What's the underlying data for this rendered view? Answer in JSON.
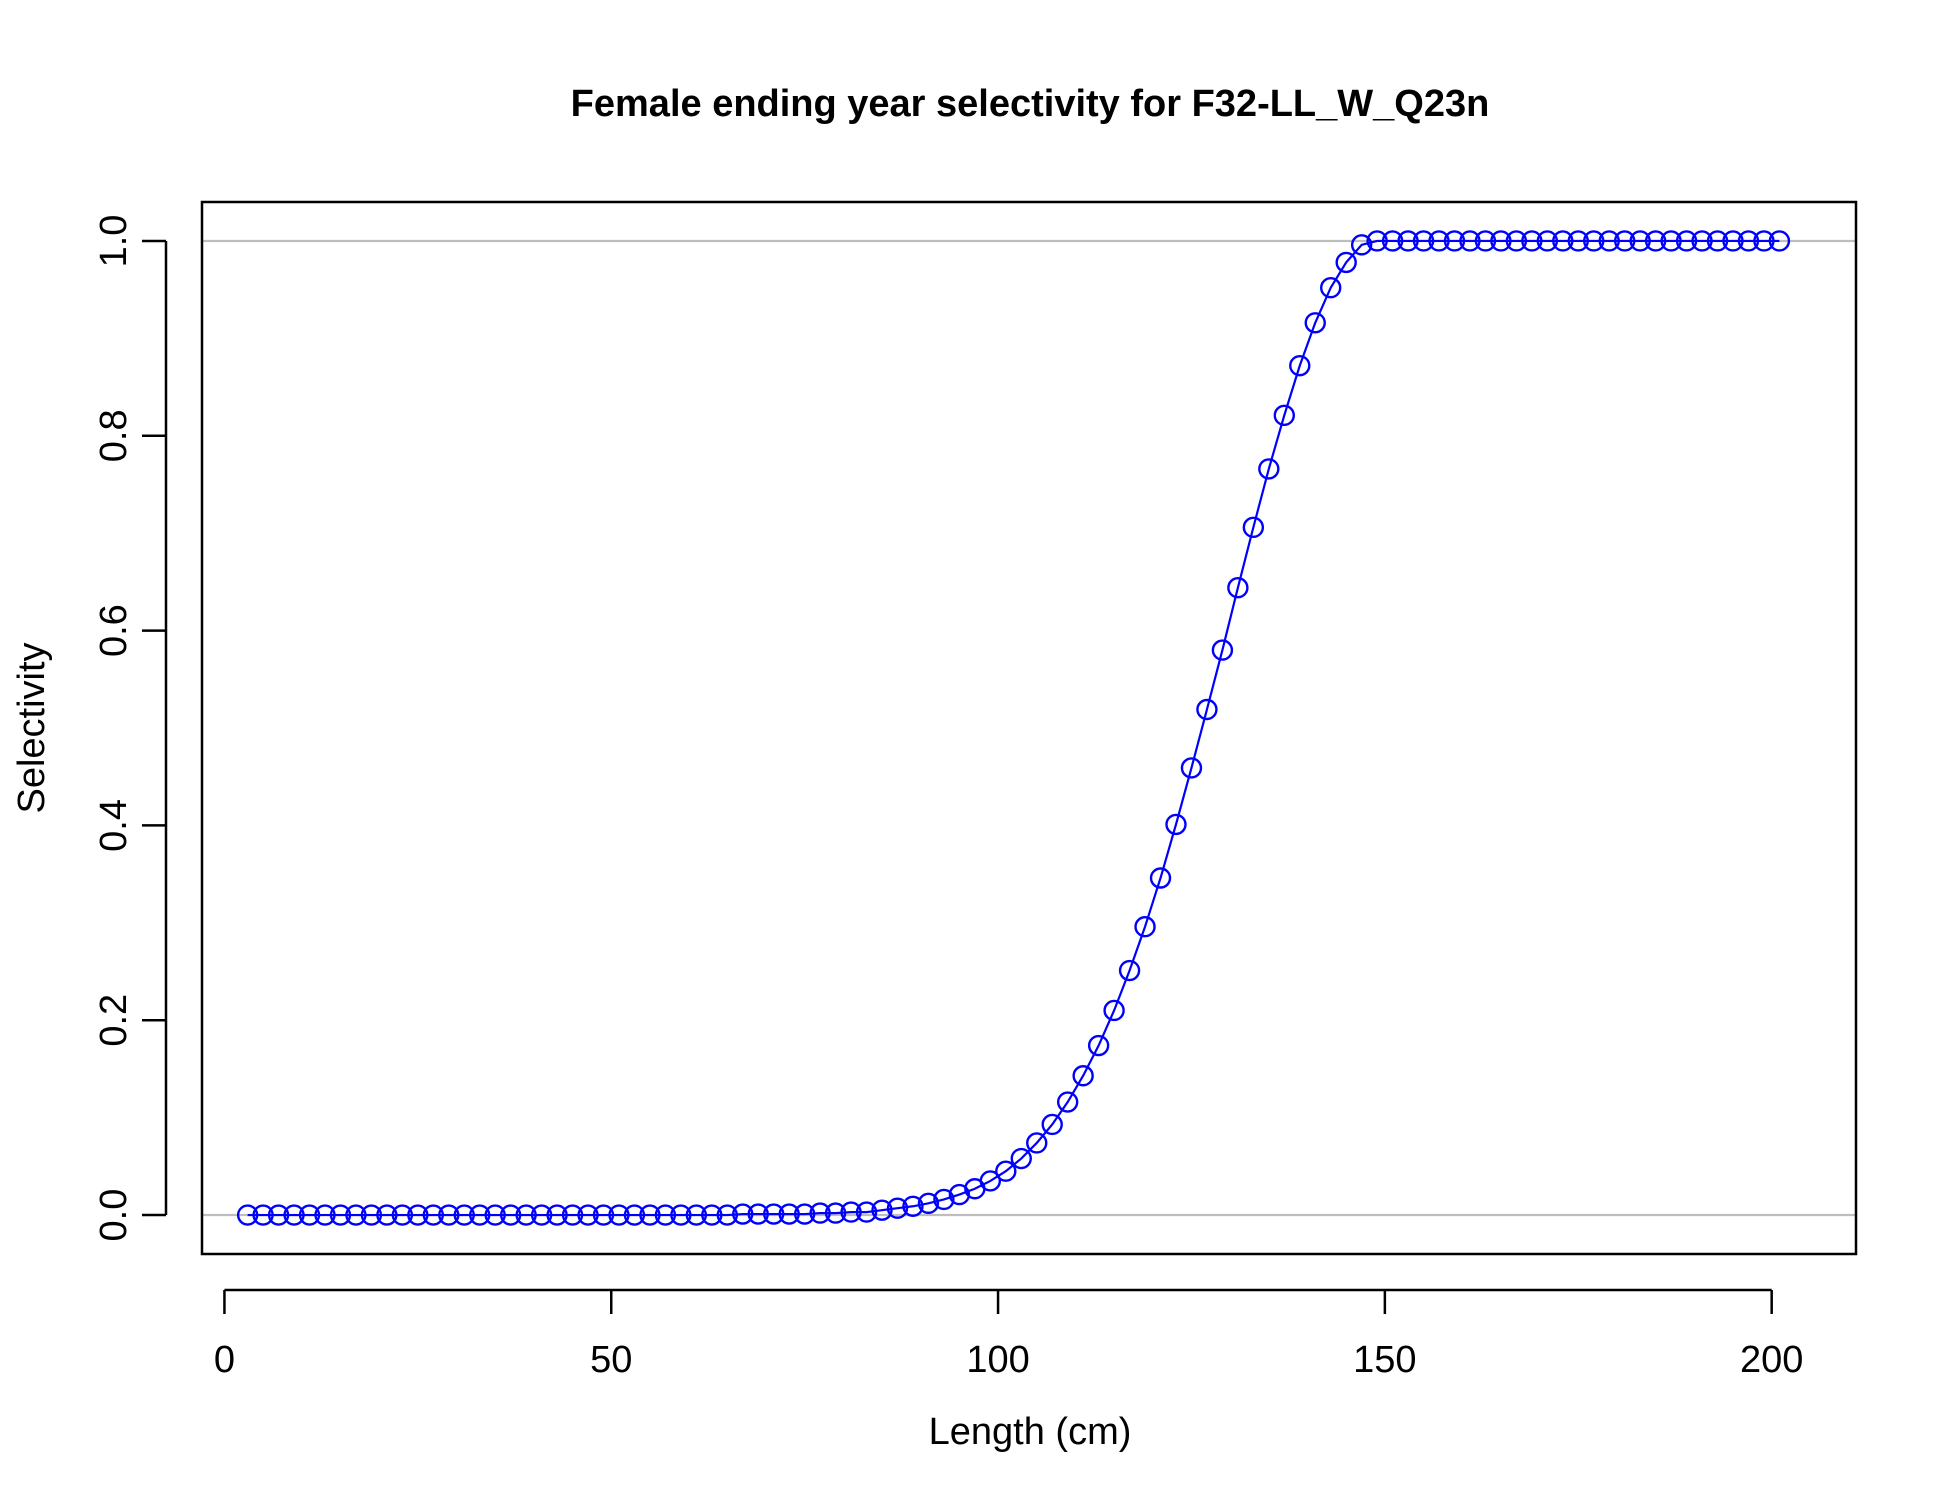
{
  "chart_data": {
    "type": "line",
    "title": "Female ending year selectivity for F32-LL_W_Q23n",
    "xlabel": "Length (cm)",
    "ylabel": "Selectivity",
    "xlim": [
      -2.9,
      210.9
    ],
    "ylim": [
      -0.04,
      1.04
    ],
    "xticks": [
      0,
      50,
      100,
      150,
      200
    ],
    "xtick_labels": [
      "0",
      "50",
      "100",
      "150",
      "200"
    ],
    "yticks": [
      0.0,
      0.2,
      0.4,
      0.6,
      0.8,
      1.0
    ],
    "ytick_labels": [
      "0.0",
      "0.2",
      "0.4",
      "0.6",
      "0.8",
      "1.0"
    ],
    "reference_lines": [
      0,
      1
    ],
    "reference_line_color": "#bebebe",
    "series_color": "#0000ff",
    "marker": "open-circle",
    "grid": false,
    "legend": "none",
    "series": [
      {
        "x": [
          3,
          5,
          7,
          9,
          11,
          13,
          15,
          17,
          19,
          21,
          23,
          25,
          27,
          29,
          31,
          33,
          35,
          37,
          39,
          41,
          43,
          45,
          47,
          49,
          51,
          53,
          55,
          57,
          59,
          61,
          63,
          65,
          67,
          69,
          71,
          73,
          75,
          77,
          79,
          81,
          83,
          85,
          87,
          89,
          91,
          93,
          95,
          97,
          99,
          101,
          103,
          105,
          107,
          109,
          111,
          113,
          115,
          117,
          119,
          121,
          123,
          125,
          127,
          129,
          131,
          133,
          135,
          137,
          139,
          141,
          143,
          145,
          147,
          149,
          151,
          153,
          155,
          157,
          159,
          161,
          163,
          165,
          167,
          169,
          171,
          173,
          175,
          177,
          179,
          181,
          183,
          185,
          187,
          189,
          191,
          193,
          195,
          197,
          199,
          201
        ],
        "values": [
          0,
          0,
          0,
          0,
          0,
          0,
          0,
          0,
          0,
          0,
          0,
          0,
          0,
          0,
          0,
          0,
          0,
          0,
          0,
          0,
          0,
          0,
          0,
          0,
          0,
          0,
          0,
          0,
          0,
          0,
          0,
          0,
          0.001,
          0.001,
          0.001,
          0.001,
          0.001,
          0.002,
          0.002,
          0.003,
          0.003,
          0.005,
          0.007,
          0.009,
          0.012,
          0.016,
          0.021,
          0.027,
          0.035,
          0.045,
          0.058,
          0.074,
          0.093,
          0.116,
          0.143,
          0.174,
          0.21,
          0.251,
          0.296,
          0.346,
          0.401,
          0.459,
          0.519,
          0.58,
          0.644,
          0.706,
          0.766,
          0.821,
          0.872,
          0.916,
          0.952,
          0.978,
          0.996,
          1,
          1,
          1,
          1,
          1,
          1,
          1,
          1,
          1,
          1,
          1,
          1,
          1,
          1,
          1,
          1,
          1,
          1,
          1,
          1,
          1,
          1,
          1,
          1,
          1,
          1,
          1
        ]
      }
    ]
  }
}
